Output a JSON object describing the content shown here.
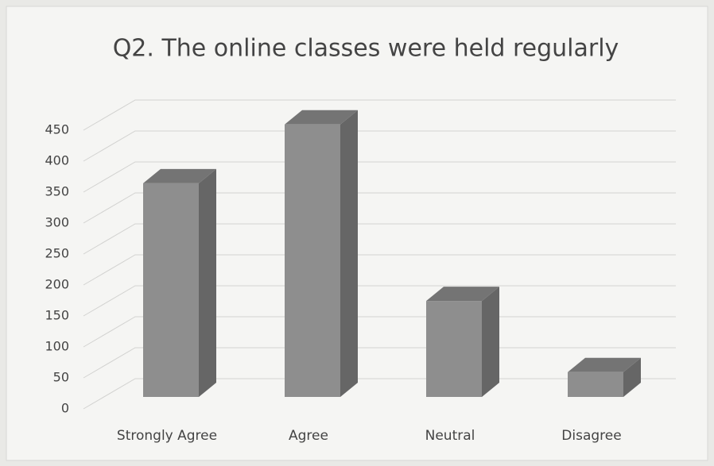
{
  "chart_data": {
    "type": "bar3d",
    "title": "Q2. The online classes were held regularly",
    "categories": [
      "Strongly Agree",
      "Agree",
      "Neutral",
      "Disagree"
    ],
    "values": [
      345,
      440,
      155,
      40
    ],
    "color": "#8e8e8e",
    "ylim": [
      0,
      450
    ],
    "yticks": [
      0,
      50,
      100,
      150,
      200,
      250,
      300,
      350,
      400,
      450
    ],
    "grid": true
  }
}
